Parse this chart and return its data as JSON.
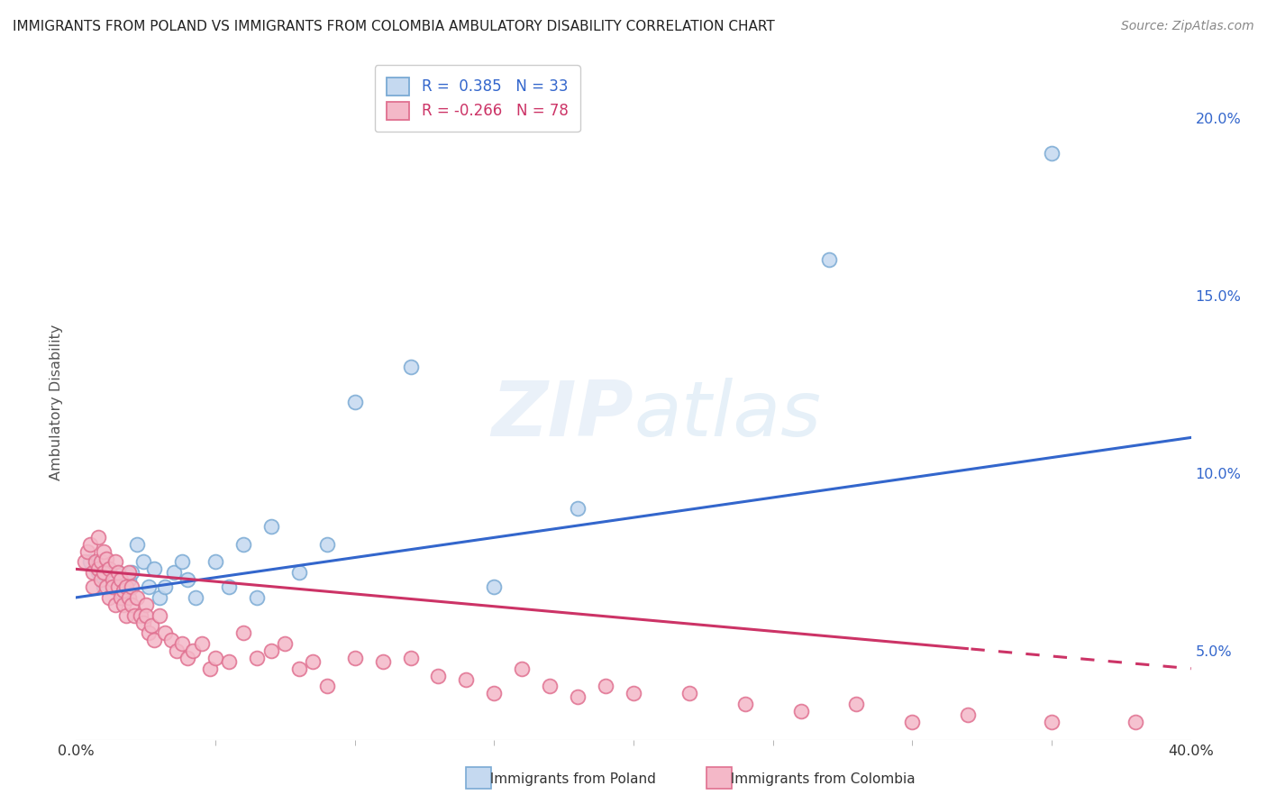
{
  "title": "IMMIGRANTS FROM POLAND VS IMMIGRANTS FROM COLOMBIA AMBULATORY DISABILITY CORRELATION CHART",
  "source": "Source: ZipAtlas.com",
  "ylabel": "Ambulatory Disability",
  "ylabel_right_ticks": [
    "5.0%",
    "10.0%",
    "15.0%",
    "20.0%"
  ],
  "ylabel_right_vals": [
    0.05,
    0.1,
    0.15,
    0.2
  ],
  "legend_entries": [
    {
      "label": "R =  0.385   N = 33",
      "color": "#b8d0ea"
    },
    {
      "label": "R = -0.266   N = 78",
      "color": "#f4b8c8"
    }
  ],
  "poland_color": "#c5d9f0",
  "poland_edge": "#7aaad4",
  "colombia_color": "#f4b8c8",
  "colombia_edge": "#e07090",
  "trendline_poland_color": "#3366cc",
  "trendline_colombia_color": "#cc3366",
  "background_color": "#ffffff",
  "grid_color": "#d8d8d8",
  "xlim": [
    0.0,
    0.4
  ],
  "ylim": [
    0.025,
    0.215
  ],
  "poland_x": [
    0.005,
    0.008,
    0.01,
    0.012,
    0.013,
    0.015,
    0.016,
    0.017,
    0.019,
    0.02,
    0.022,
    0.024,
    0.026,
    0.028,
    0.03,
    0.032,
    0.035,
    0.038,
    0.04,
    0.043,
    0.05,
    0.055,
    0.06,
    0.065,
    0.07,
    0.08,
    0.09,
    0.1,
    0.12,
    0.15,
    0.18,
    0.27,
    0.35
  ],
  "poland_y": [
    0.075,
    0.072,
    0.068,
    0.073,
    0.07,
    0.072,
    0.065,
    0.068,
    0.07,
    0.072,
    0.08,
    0.075,
    0.068,
    0.073,
    0.065,
    0.068,
    0.072,
    0.075,
    0.07,
    0.065,
    0.075,
    0.068,
    0.08,
    0.065,
    0.085,
    0.072,
    0.08,
    0.12,
    0.13,
    0.068,
    0.09,
    0.16,
    0.19
  ],
  "colombia_x": [
    0.003,
    0.004,
    0.005,
    0.006,
    0.006,
    0.007,
    0.008,
    0.008,
    0.009,
    0.009,
    0.01,
    0.01,
    0.011,
    0.011,
    0.012,
    0.012,
    0.013,
    0.013,
    0.014,
    0.014,
    0.015,
    0.015,
    0.016,
    0.016,
    0.017,
    0.017,
    0.018,
    0.018,
    0.019,
    0.019,
    0.02,
    0.02,
    0.021,
    0.022,
    0.023,
    0.024,
    0.025,
    0.025,
    0.026,
    0.027,
    0.028,
    0.03,
    0.032,
    0.034,
    0.036,
    0.038,
    0.04,
    0.042,
    0.045,
    0.048,
    0.05,
    0.055,
    0.06,
    0.065,
    0.07,
    0.075,
    0.08,
    0.085,
    0.09,
    0.1,
    0.11,
    0.12,
    0.13,
    0.14,
    0.15,
    0.16,
    0.17,
    0.18,
    0.19,
    0.2,
    0.22,
    0.24,
    0.26,
    0.28,
    0.3,
    0.32,
    0.35,
    0.38
  ],
  "colombia_y": [
    0.075,
    0.078,
    0.08,
    0.072,
    0.068,
    0.075,
    0.073,
    0.082,
    0.07,
    0.075,
    0.072,
    0.078,
    0.068,
    0.076,
    0.073,
    0.065,
    0.07,
    0.068,
    0.075,
    0.063,
    0.068,
    0.072,
    0.065,
    0.07,
    0.067,
    0.063,
    0.068,
    0.06,
    0.065,
    0.072,
    0.068,
    0.063,
    0.06,
    0.065,
    0.06,
    0.058,
    0.063,
    0.06,
    0.055,
    0.057,
    0.053,
    0.06,
    0.055,
    0.053,
    0.05,
    0.052,
    0.048,
    0.05,
    0.052,
    0.045,
    0.048,
    0.047,
    0.055,
    0.048,
    0.05,
    0.052,
    0.045,
    0.047,
    0.04,
    0.048,
    0.047,
    0.048,
    0.043,
    0.042,
    0.038,
    0.045,
    0.04,
    0.037,
    0.04,
    0.038,
    0.038,
    0.035,
    0.033,
    0.035,
    0.03,
    0.032,
    0.03,
    0.03
  ]
}
